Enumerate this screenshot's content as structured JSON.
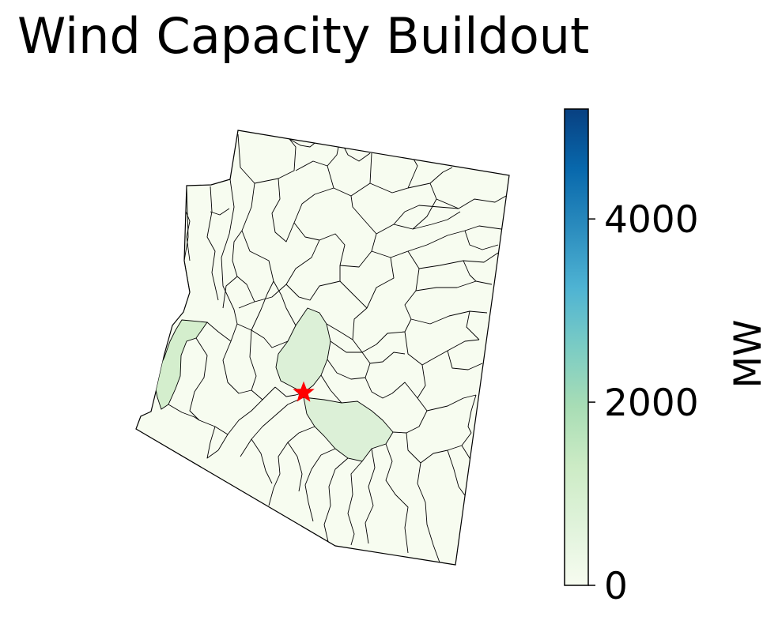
{
  "title": "Wind Capacity Buildout",
  "colorbar": {
    "label": "MW",
    "min": 0,
    "max": 5200,
    "ticks": [
      {
        "value": 0,
        "label": "0"
      },
      {
        "value": 2000,
        "label": "2000"
      },
      {
        "value": 4000,
        "label": "4000"
      }
    ],
    "colormap": [
      "#f7fcf0",
      "#e0f3db",
      "#ccebc5",
      "#a8ddb5",
      "#7bccc4",
      "#4eb3d3",
      "#2b8cbe",
      "#0868ac",
      "#084081"
    ]
  },
  "map": {
    "region_fill_base": "#f7fcf0",
    "region_fill_highlight": "#dcf0d7",
    "region_fill_west": "#d4eecd",
    "boundary_color": "#000000",
    "marker_color": "#ff0000",
    "highlighted_regions_mw": [
      {
        "name": "western-border-zone",
        "mw": 800
      },
      {
        "name": "central-north-zone",
        "mw": 450
      },
      {
        "name": "central-south-zone",
        "mw": 450
      }
    ],
    "marker_symbol": "star"
  }
}
